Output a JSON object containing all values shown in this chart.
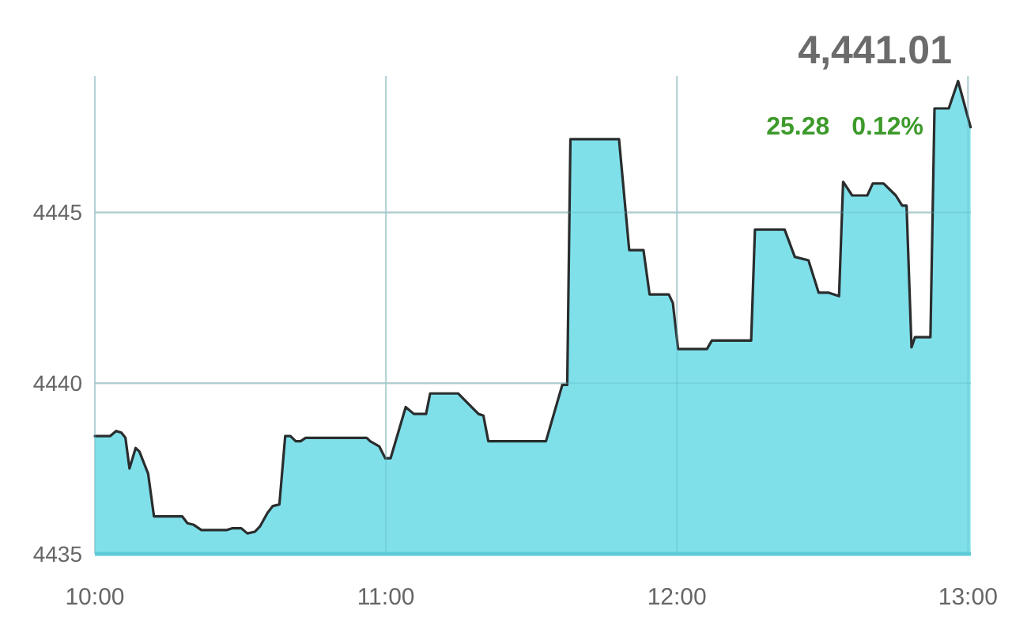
{
  "chart_data": {
    "type": "area",
    "title": "4,441.01",
    "annotations": [
      "25.28",
      "0.12%"
    ],
    "color": "#7fe0ea",
    "x": [
      10.0,
      10.052,
      10.073,
      10.091,
      10.105,
      10.119,
      10.14,
      10.153,
      10.183,
      10.203,
      10.3,
      10.318,
      10.34,
      10.366,
      10.454,
      10.471,
      10.503,
      10.524,
      10.55,
      10.567,
      10.593,
      10.611,
      10.634,
      10.654,
      10.672,
      10.69,
      10.707,
      10.724,
      10.934,
      10.946,
      10.977,
      10.998,
      11.016,
      11.068,
      11.096,
      11.138,
      11.152,
      11.248,
      11.318,
      11.335,
      11.352,
      11.55,
      11.606,
      11.623,
      11.634,
      11.801,
      11.836,
      11.885,
      11.906,
      11.972,
      11.986,
      12.004,
      12.103,
      12.12,
      12.255,
      12.268,
      12.37,
      12.405,
      12.452,
      12.487,
      12.522,
      12.557,
      12.571,
      12.602,
      12.654,
      12.673,
      12.71,
      12.752,
      12.774,
      12.789,
      12.806,
      12.818,
      12.871,
      12.885,
      12.934,
      12.966,
      13.009
    ],
    "values": [
      4438.45,
      4438.45,
      4438.6,
      4438.55,
      4438.4,
      4437.5,
      4438.1,
      4438.0,
      4437.35,
      4436.1,
      4436.1,
      4435.9,
      4435.85,
      4435.7,
      4435.7,
      4435.75,
      4435.75,
      4435.6,
      4435.65,
      4435.8,
      4436.2,
      4436.4,
      4436.45,
      4438.45,
      4438.45,
      4438.3,
      4438.3,
      4438.4,
      4438.4,
      4438.3,
      4438.15,
      4437.8,
      4437.8,
      4439.3,
      4439.1,
      4439.1,
      4439.7,
      4439.7,
      4439.1,
      4439.05,
      4438.3,
      4438.3,
      4439.95,
      4439.95,
      4447.15,
      4447.15,
      4443.9,
      4443.9,
      4442.6,
      4442.6,
      4442.35,
      4441.0,
      4441.0,
      4441.25,
      4441.25,
      4444.5,
      4444.5,
      4443.7,
      4443.6,
      4442.65,
      4442.65,
      4442.55,
      4445.9,
      4445.5,
      4445.5,
      4445.85,
      4445.85,
      4445.5,
      4445.2,
      4445.2,
      4441.05,
      4441.35,
      4441.35,
      4448.05,
      4448.05,
      4448.85,
      4447.5
    ],
    "xlim": [
      10,
      13.01
    ],
    "xticks": [
      {
        "value": 10,
        "label": "10:00"
      },
      {
        "value": 11,
        "label": "11:00"
      },
      {
        "value": 12,
        "label": "12:00"
      },
      {
        "value": 13,
        "label": "13:00"
      }
    ],
    "ylim": [
      4435,
      4449
    ],
    "yticks": [
      4435,
      4440,
      4445
    ],
    "grid": true
  }
}
